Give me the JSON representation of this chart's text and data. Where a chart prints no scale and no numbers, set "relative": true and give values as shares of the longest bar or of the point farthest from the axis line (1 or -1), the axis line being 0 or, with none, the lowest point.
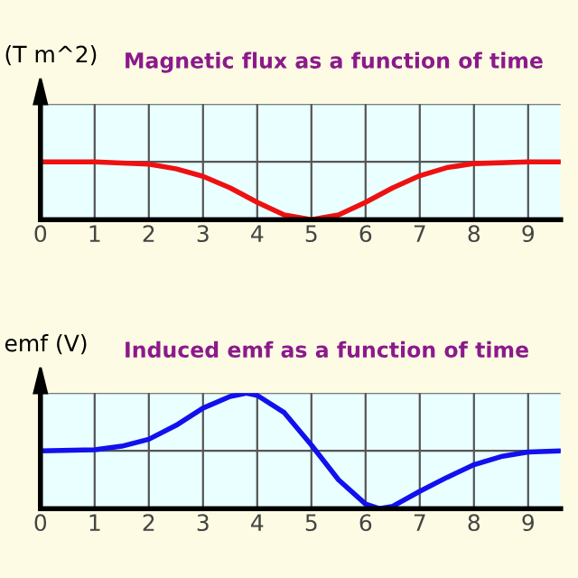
{
  "chart_data": [
    {
      "type": "line",
      "title": "Magnetic flux as a function of time",
      "ylabel": "(T m^2)",
      "relative": true,
      "grid": true,
      "xlim": [
        0,
        9.6
      ],
      "xticks": [
        0,
        1,
        2,
        3,
        4,
        5,
        6,
        7,
        8,
        9
      ],
      "series": [
        {
          "color": "#ee1111",
          "x": [
            0,
            1,
            2,
            2.5,
            3,
            3.5,
            4,
            4.5,
            5,
            5.5,
            6,
            6.5,
            7,
            7.5,
            8,
            9,
            9.6
          ],
          "values": [
            1,
            1,
            0.96,
            0.88,
            0.75,
            0.55,
            0.3,
            0.08,
            0,
            0.08,
            0.3,
            0.55,
            0.76,
            0.9,
            0.97,
            1,
            1
          ]
        }
      ]
    },
    {
      "type": "line",
      "title": "Induced emf as a function of time",
      "ylabel": "emf (V)",
      "relative": true,
      "grid": true,
      "xlim": [
        0,
        9.6
      ],
      "xticks": [
        0,
        1,
        2,
        3,
        4,
        5,
        6,
        7,
        8,
        9
      ],
      "series": [
        {
          "color": "#1111ee",
          "x": [
            0,
            1,
            1.5,
            2,
            2.5,
            3,
            3.5,
            3.8,
            4,
            4.5,
            5,
            5.5,
            6,
            6.25,
            6.5,
            7,
            7.5,
            8,
            8.5,
            9,
            9.6
          ],
          "values": [
            0.5,
            0.51,
            0.54,
            0.6,
            0.72,
            0.87,
            0.97,
            1,
            0.98,
            0.83,
            0.55,
            0.25,
            0.04,
            0,
            0.02,
            0.15,
            0.27,
            0.38,
            0.45,
            0.49,
            0.5
          ]
        }
      ]
    }
  ]
}
